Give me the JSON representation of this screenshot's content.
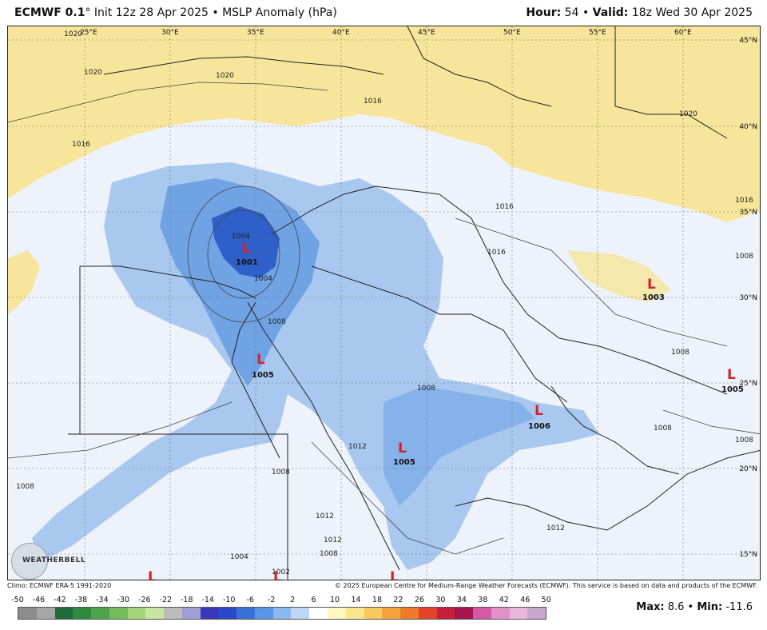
{
  "header": {
    "model": "ECMWF 0.1",
    "degree": "°",
    "init_text": "Init 12z 28 Apr 2025",
    "separator": "•",
    "product": "MSLP Anomaly (hPa)",
    "hour_label": "Hour:",
    "hour_value": "54",
    "valid_label": "Valid:",
    "valid_value": "18z Wed 30 Apr 2025"
  },
  "map": {
    "lon_labels": [
      "25°E",
      "30°E",
      "35°E",
      "40°E",
      "45°E",
      "50°E",
      "55°E",
      "60°E"
    ],
    "lat_labels": [
      "45°N",
      "40°N",
      "35°N",
      "30°N",
      "25°N",
      "20°N",
      "15°N"
    ],
    "isobar_labels": [
      "1020",
      "1020",
      "1020",
      "1020",
      "1016",
      "1016",
      "1016",
      "1016",
      "1016",
      "1004",
      "1004",
      "1008",
      "1008",
      "1008",
      "1008",
      "1008",
      "1008",
      "1008",
      "1008",
      "1012",
      "1012",
      "1012",
      "1004",
      "1002",
      "1008",
      "1012"
    ],
    "lows": [
      {
        "symbol": "L",
        "value": "1001"
      },
      {
        "symbol": "L",
        "value": "1005"
      },
      {
        "symbol": "L",
        "value": "1005"
      },
      {
        "symbol": "L",
        "value": "1006"
      },
      {
        "symbol": "L",
        "value": "1003"
      },
      {
        "symbol": "L",
        "value": "1005"
      },
      {
        "symbol": "L",
        "value": ""
      },
      {
        "symbol": "L",
        "value": ""
      },
      {
        "symbol": "L",
        "value": ""
      }
    ],
    "colors": {
      "positive_anomaly": "#f5e394",
      "neutral": "#eef3fb",
      "negative_light": "#a9c8ef",
      "negative_mid": "#6fa3e4",
      "negative_deep": "#2f5fc9",
      "low_marker": "#d8202a"
    }
  },
  "footer": {
    "climo": "Climo: ECMWF ERA-5 1991-2020",
    "copyright": "© 2025 European Centre for Medium-Range Weather Forecasts (ECMWF). This service is based on data and products of the ECMWF.",
    "max_label": "Max:",
    "max_value": "8.6",
    "min_label": "Min:",
    "min_value": "-11.6",
    "logo_text": "WEATHERBELL"
  },
  "scale": {
    "ticks": [
      "-50",
      "-46",
      "-42",
      "-38",
      "-34",
      "-30",
      "-26",
      "-22",
      "-18",
      "-14",
      "-10",
      "-6",
      "-2",
      "2",
      "6",
      "10",
      "14",
      "18",
      "22",
      "26",
      "30",
      "34",
      "38",
      "42",
      "46",
      "50"
    ],
    "colors": [
      "#8c8c8c",
      "#a6a6a6",
      "#1f6b3a",
      "#2f8a3f",
      "#4fa34a",
      "#73bd5c",
      "#a5d57a",
      "#c8e59f",
      "#bcbcbc",
      "#9f9fd8",
      "#3a37b8",
      "#2a49c9",
      "#3b6fd8",
      "#5b93e6",
      "#8cb8ef",
      "#bed6f6",
      "#ffffff",
      "#fff6c2",
      "#fbe58f",
      "#f8c95c",
      "#f5a33c",
      "#ef7a2c",
      "#e2442b",
      "#c61f3b",
      "#a5154c",
      "#d45aa6",
      "#e192c8",
      "#e9b7dc",
      "#c8a7cf"
    ]
  }
}
